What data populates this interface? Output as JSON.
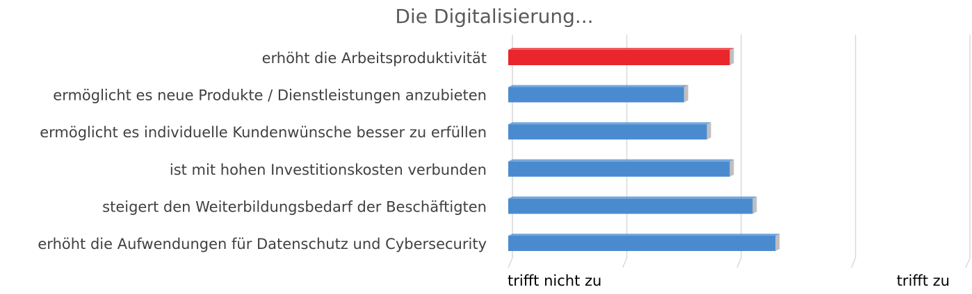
{
  "chart_data": {
    "type": "bar",
    "orientation": "horizontal",
    "title": "Die Digitalisierung...",
    "categories": [
      "erhöht die Arbeitsproduktivität",
      "ermöglicht es neue Produkte / Dienstleistungen anzubieten",
      "ermöglicht es individuelle Kundenwünsche besser zu erfüllen",
      "ist mit hohen Investitionskosten verbunden",
      "steigert den Weiterbildungsbedarf der Beschäftigten",
      "erhöht die Aufwendungen für Datenschutz und Cybersecurity"
    ],
    "values": [
      2.9,
      2.5,
      2.7,
      2.9,
      3.1,
      3.3
    ],
    "xlim": [
      1,
      5
    ],
    "x_tick_labels": [
      "trifft nicht zu",
      "trifft zu"
    ],
    "grid": true,
    "legend": "none",
    "colors": {
      "highlight_bar": "#e8262b",
      "bar": "#4a8bd0",
      "grid": "#d9d9d9",
      "title": "#595959",
      "label": "#404040",
      "axis_label": "#000000"
    },
    "highlight_index": 0
  }
}
